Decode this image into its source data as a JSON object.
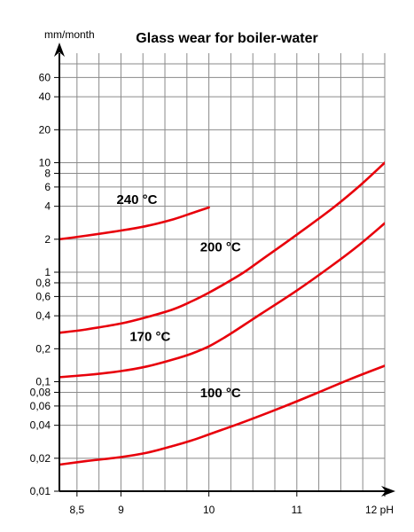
{
  "chart_data": {
    "type": "line",
    "title": "Glass wear for boiler-water",
    "ylabel": "mm/month",
    "xlabel": "pH",
    "y_scale": "log",
    "xlim": [
      8.3,
      12
    ],
    "ylim": [
      0.01,
      100
    ],
    "grid": true,
    "x_ticks": [
      {
        "value": 8.5,
        "label": "8,5"
      },
      {
        "value": 9,
        "label": "9"
      },
      {
        "value": 10,
        "label": "10"
      },
      {
        "value": 11,
        "label": "11"
      },
      {
        "value": 12,
        "label": "12 pH"
      }
    ],
    "y_ticks": [
      {
        "value": 0.01,
        "label": "0,01"
      },
      {
        "value": 0.02,
        "label": "0,02"
      },
      {
        "value": 0.04,
        "label": "0,04"
      },
      {
        "value": 0.06,
        "label": "0,06"
      },
      {
        "value": 0.08,
        "label": "0,08"
      },
      {
        "value": 0.1,
        "label": "0,1"
      },
      {
        "value": 0.2,
        "label": "0,2"
      },
      {
        "value": 0.4,
        "label": "0,4"
      },
      {
        "value": 0.6,
        "label": "0,6"
      },
      {
        "value": 0.8,
        "label": "0,8"
      },
      {
        "value": 1,
        "label": "1"
      },
      {
        "value": 2,
        "label": "2"
      },
      {
        "value": 4,
        "label": "4"
      },
      {
        "value": 6,
        "label": "6"
      },
      {
        "value": 8,
        "label": "8"
      },
      {
        "value": 10,
        "label": "10"
      },
      {
        "value": 20,
        "label": "20"
      },
      {
        "value": 40,
        "label": "40"
      },
      {
        "value": 60,
        "label": "60"
      }
    ],
    "series": [
      {
        "name": "240 °C",
        "x": [
          8.3,
          8.6,
          9.0,
          9.3,
          9.6,
          9.8,
          10.0
        ],
        "y": [
          2.0,
          2.15,
          2.4,
          2.65,
          3.05,
          3.45,
          3.9
        ]
      },
      {
        "name": "200 °C",
        "x": [
          8.3,
          8.6,
          9.0,
          9.3,
          9.6,
          9.8,
          10.0,
          10.2,
          10.4,
          10.6,
          11.0,
          11.4,
          11.7,
          12.0
        ],
        "y": [
          0.28,
          0.3,
          0.34,
          0.39,
          0.46,
          0.54,
          0.65,
          0.8,
          1.0,
          1.3,
          2.2,
          3.8,
          6.0,
          10.0
        ]
      },
      {
        "name": "170 °C",
        "x": [
          8.3,
          8.6,
          9.0,
          9.3,
          9.6,
          9.8,
          10.0,
          10.2,
          10.4,
          10.6,
          11.0,
          11.4,
          11.7,
          12.0
        ],
        "y": [
          0.11,
          0.115,
          0.125,
          0.138,
          0.16,
          0.18,
          0.21,
          0.26,
          0.33,
          0.42,
          0.68,
          1.15,
          1.75,
          2.8
        ]
      },
      {
        "name": "100 °C",
        "x": [
          8.3,
          8.6,
          9.0,
          9.3,
          9.6,
          9.8,
          10.0,
          10.4,
          10.8,
          11.2,
          11.6,
          12.0
        ],
        "y": [
          0.0175,
          0.0188,
          0.0205,
          0.0225,
          0.026,
          0.029,
          0.033,
          0.043,
          0.057,
          0.077,
          0.105,
          0.14
        ]
      }
    ],
    "series_colors": [
      "#e8000b",
      "#e8000b",
      "#e8000b",
      "#e8000b"
    ]
  }
}
